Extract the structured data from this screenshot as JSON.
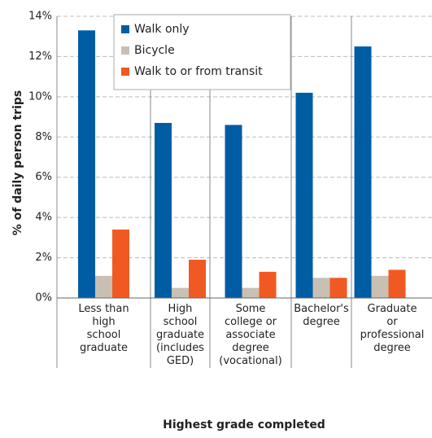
{
  "chart_data": {
    "type": "bar",
    "xlabel": "Highest grade completed",
    "ylabel": "% of daily person trips",
    "categories": [
      "Less than\nhigh\nschool\ngraduate",
      "High\nschool\ngraduate\n(includes\nGED)",
      "Some\ncollege or\nassociate\ndegree\n(vocational)",
      "Bachelor's\ndegree",
      "Graduate\nor\nprofessional\ndegree"
    ],
    "series": [
      {
        "name": "Walk only",
        "color": "#005da4",
        "values": [
          13.3,
          8.7,
          8.6,
          10.2,
          12.5
        ]
      },
      {
        "name": "Bicycle",
        "color": "#c8c0b3",
        "values": [
          1.1,
          0.5,
          0.5,
          1.0,
          1.1
        ]
      },
      {
        "name": "Walk to or from transit",
        "color": "#f05a22",
        "values": [
          3.4,
          1.9,
          1.3,
          1.0,
          1.4
        ]
      }
    ],
    "ylim": [
      0,
      14
    ],
    "yticks": [
      {
        "value": 0,
        "label": "0%"
      },
      {
        "value": 2,
        "label": "2%"
      },
      {
        "value": 4,
        "label": "4%"
      },
      {
        "value": 6,
        "label": "6%"
      },
      {
        "value": 8,
        "label": "8%"
      },
      {
        "value": 10,
        "label": "10%"
      },
      {
        "value": 12,
        "label": "12%"
      },
      {
        "value": 14,
        "label": "14%"
      }
    ],
    "grid": true,
    "legend": "upper left"
  }
}
